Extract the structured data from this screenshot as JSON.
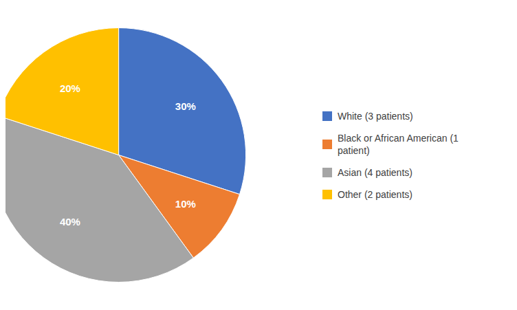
{
  "chart_data": {
    "type": "pie",
    "categories": [
      "White (3 patients)",
      "Black or African American (1\n patient)",
      "Asian (4 patients)",
      "Other (2 patients)"
    ],
    "values": [
      30,
      10,
      40,
      20
    ],
    "value_labels": [
      "30%",
      "10%",
      "40%",
      "20%"
    ],
    "colors": [
      "#4472C4",
      "#ED7D31",
      "#A5A5A5",
      "#FFC000"
    ],
    "data_labels": true,
    "legend": "right"
  }
}
